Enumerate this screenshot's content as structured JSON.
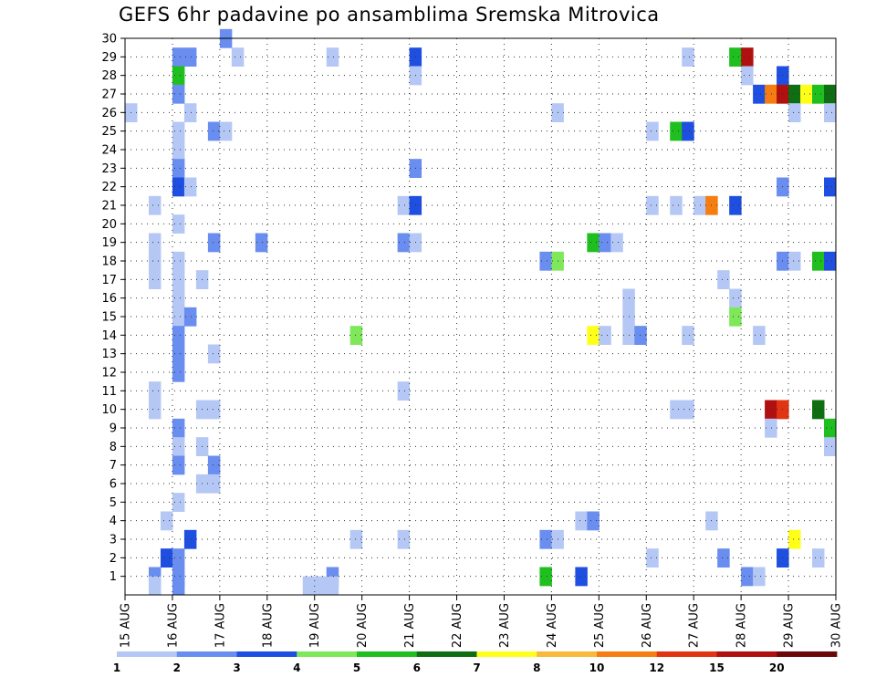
{
  "chart_data": {
    "type": "heatmap",
    "title": "GEFS 6hr padavine po ansamblima Sremska Mitrovica",
    "x_ticks": [
      "15 AUG",
      "16 AUG",
      "17 AUG",
      "18 AUG",
      "19 AUG",
      "20 AUG",
      "21 AUG",
      "22 AUG",
      "23 AUG",
      "24 AUG",
      "25 AUG",
      "26 AUG",
      "27 AUG",
      "28 AUG",
      "29 AUG",
      "30 AUG"
    ],
    "y_ticks": [
      1,
      2,
      3,
      4,
      5,
      6,
      7,
      8,
      9,
      10,
      11,
      12,
      13,
      14,
      15,
      16,
      17,
      18,
      19,
      20,
      21,
      22,
      23,
      24,
      25,
      26,
      27,
      28,
      29,
      30
    ],
    "x_range": [
      "15 AUG",
      "30 AUG"
    ],
    "y_range": [
      0,
      30
    ],
    "grid": true,
    "legend": {
      "position": "bottom",
      "labels": [
        "1",
        "2",
        "3",
        "4",
        "5",
        "6",
        "7",
        "8",
        "10",
        "12",
        "15",
        "20"
      ],
      "colors": [
        "#b5c8f5",
        "#6a8ef0",
        "#1f4fe0",
        "#7ee85a",
        "#1fbf1f",
        "#0f6e12",
        "#ffff1a",
        "#f8b93c",
        "#f57d12",
        "#e03412",
        "#b01010",
        "#6b0808"
      ]
    },
    "cells": [
      {
        "m": 30,
        "d": 17.0,
        "c": 2
      },
      {
        "m": 29,
        "d": 16.0,
        "c": 2
      },
      {
        "m": 29,
        "d": 16.25,
        "c": 2
      },
      {
        "m": 29,
        "d": 17.25,
        "c": 1
      },
      {
        "m": 29,
        "d": 19.25,
        "c": 1
      },
      {
        "m": 29,
        "d": 21.0,
        "c": 3
      },
      {
        "m": 29,
        "d": 26.75,
        "c": 1
      },
      {
        "m": 29,
        "d": 27.75,
        "c": 5
      },
      {
        "m": 29,
        "d": 28.0,
        "c": 11
      },
      {
        "m": 28,
        "d": 16.0,
        "c": 5
      },
      {
        "m": 28,
        "d": 21.0,
        "c": 1
      },
      {
        "m": 28,
        "d": 28.0,
        "c": 1
      },
      {
        "m": 28,
        "d": 28.75,
        "c": 3
      },
      {
        "m": 27,
        "d": 16.0,
        "c": 2
      },
      {
        "m": 27,
        "d": 28.25,
        "c": 3
      },
      {
        "m": 27,
        "d": 28.5,
        "c": 9
      },
      {
        "m": 27,
        "d": 28.75,
        "c": 11
      },
      {
        "m": 27,
        "d": 29.0,
        "c": 6
      },
      {
        "m": 27,
        "d": 29.25,
        "c": 7
      },
      {
        "m": 27,
        "d": 29.5,
        "c": 5
      },
      {
        "m": 27,
        "d": 29.75,
        "c": 6
      },
      {
        "m": 26,
        "d": 15.0,
        "c": 1
      },
      {
        "m": 26,
        "d": 16.25,
        "c": 1
      },
      {
        "m": 26,
        "d": 24.0,
        "c": 1
      },
      {
        "m": 26,
        "d": 29.0,
        "c": 1
      },
      {
        "m": 26,
        "d": 29.75,
        "c": 1
      },
      {
        "m": 25,
        "d": 16.0,
        "c": 1
      },
      {
        "m": 25,
        "d": 16.75,
        "c": 2
      },
      {
        "m": 25,
        "d": 17.0,
        "c": 1
      },
      {
        "m": 25,
        "d": 26.0,
        "c": 1
      },
      {
        "m": 25,
        "d": 26.5,
        "c": 5
      },
      {
        "m": 25,
        "d": 26.75,
        "c": 3
      },
      {
        "m": 24,
        "d": 16.0,
        "c": 1
      },
      {
        "m": 23,
        "d": 16.0,
        "c": 2
      },
      {
        "m": 23,
        "d": 21.0,
        "c": 2
      },
      {
        "m": 22,
        "d": 16.0,
        "c": 3
      },
      {
        "m": 22,
        "d": 16.25,
        "c": 1
      },
      {
        "m": 22,
        "d": 28.75,
        "c": 2
      },
      {
        "m": 22,
        "d": 29.75,
        "c": 3
      },
      {
        "m": 21,
        "d": 15.5,
        "c": 1
      },
      {
        "m": 21,
        "d": 20.75,
        "c": 1
      },
      {
        "m": 21,
        "d": 21.0,
        "c": 3
      },
      {
        "m": 21,
        "d": 26.0,
        "c": 1
      },
      {
        "m": 21,
        "d": 26.5,
        "c": 1
      },
      {
        "m": 21,
        "d": 27.0,
        "c": 1
      },
      {
        "m": 21,
        "d": 27.25,
        "c": 9
      },
      {
        "m": 21,
        "d": 27.75,
        "c": 3
      },
      {
        "m": 20,
        "d": 16.0,
        "c": 1
      },
      {
        "m": 19,
        "d": 15.5,
        "c": 1
      },
      {
        "m": 19,
        "d": 16.75,
        "c": 2
      },
      {
        "m": 19,
        "d": 17.75,
        "c": 2
      },
      {
        "m": 19,
        "d": 20.75,
        "c": 2
      },
      {
        "m": 19,
        "d": 21.0,
        "c": 1
      },
      {
        "m": 19,
        "d": 24.75,
        "c": 5
      },
      {
        "m": 19,
        "d": 25.0,
        "c": 2
      },
      {
        "m": 19,
        "d": 25.25,
        "c": 1
      },
      {
        "m": 18,
        "d": 15.5,
        "c": 1
      },
      {
        "m": 18,
        "d": 16.0,
        "c": 1
      },
      {
        "m": 18,
        "d": 23.75,
        "c": 2
      },
      {
        "m": 18,
        "d": 24.0,
        "c": 4
      },
      {
        "m": 18,
        "d": 28.75,
        "c": 2
      },
      {
        "m": 18,
        "d": 29.0,
        "c": 1
      },
      {
        "m": 18,
        "d": 29.5,
        "c": 5
      },
      {
        "m": 18,
        "d": 29.75,
        "c": 3
      },
      {
        "m": 17,
        "d": 15.5,
        "c": 1
      },
      {
        "m": 17,
        "d": 16.0,
        "c": 1
      },
      {
        "m": 17,
        "d": 16.5,
        "c": 1
      },
      {
        "m": 17,
        "d": 27.5,
        "c": 1
      },
      {
        "m": 16,
        "d": 16.0,
        "c": 1
      },
      {
        "m": 16,
        "d": 25.5,
        "c": 1
      },
      {
        "m": 16,
        "d": 27.75,
        "c": 1
      },
      {
        "m": 15,
        "d": 16.0,
        "c": 1
      },
      {
        "m": 15,
        "d": 16.25,
        "c": 2
      },
      {
        "m": 15,
        "d": 25.5,
        "c": 1
      },
      {
        "m": 15,
        "d": 27.75,
        "c": 4
      },
      {
        "m": 14,
        "d": 16.0,
        "c": 2
      },
      {
        "m": 14,
        "d": 19.75,
        "c": 4
      },
      {
        "m": 14,
        "d": 24.75,
        "c": 7
      },
      {
        "m": 14,
        "d": 25.0,
        "c": 1
      },
      {
        "m": 14,
        "d": 25.5,
        "c": 1
      },
      {
        "m": 14,
        "d": 25.75,
        "c": 2
      },
      {
        "m": 14,
        "d": 26.75,
        "c": 1
      },
      {
        "m": 14,
        "d": 28.25,
        "c": 1
      },
      {
        "m": 13,
        "d": 16.0,
        "c": 2
      },
      {
        "m": 13,
        "d": 16.75,
        "c": 1
      },
      {
        "m": 12,
        "d": 16.0,
        "c": 2
      },
      {
        "m": 11,
        "d": 15.5,
        "c": 1
      },
      {
        "m": 11,
        "d": 20.75,
        "c": 1
      },
      {
        "m": 10,
        "d": 15.5,
        "c": 1
      },
      {
        "m": 10,
        "d": 16.5,
        "c": 1
      },
      {
        "m": 10,
        "d": 16.75,
        "c": 1
      },
      {
        "m": 10,
        "d": 26.5,
        "c": 1
      },
      {
        "m": 10,
        "d": 26.75,
        "c": 1
      },
      {
        "m": 10,
        "d": 28.5,
        "c": 11
      },
      {
        "m": 10,
        "d": 28.75,
        "c": 10
      },
      {
        "m": 10,
        "d": 29.5,
        "c": 6
      },
      {
        "m": 9,
        "d": 16.0,
        "c": 2
      },
      {
        "m": 9,
        "d": 28.5,
        "c": 1
      },
      {
        "m": 9,
        "d": 29.75,
        "c": 5
      },
      {
        "m": 8,
        "d": 16.0,
        "c": 1
      },
      {
        "m": 8,
        "d": 16.5,
        "c": 1
      },
      {
        "m": 8,
        "d": 29.75,
        "c": 1
      },
      {
        "m": 7,
        "d": 16.0,
        "c": 2
      },
      {
        "m": 7,
        "d": 16.75,
        "c": 2
      },
      {
        "m": 6,
        "d": 16.5,
        "c": 1
      },
      {
        "m": 6,
        "d": 16.75,
        "c": 1
      },
      {
        "m": 5,
        "d": 16.0,
        "c": 1
      },
      {
        "m": 4,
        "d": 15.75,
        "c": 1
      },
      {
        "m": 4,
        "d": 24.5,
        "c": 1
      },
      {
        "m": 4,
        "d": 24.75,
        "c": 2
      },
      {
        "m": 4,
        "d": 27.25,
        "c": 1
      },
      {
        "m": 3,
        "d": 16.25,
        "c": 3
      },
      {
        "m": 3,
        "d": 19.75,
        "c": 1
      },
      {
        "m": 3,
        "d": 20.75,
        "c": 1
      },
      {
        "m": 3,
        "d": 23.75,
        "c": 2
      },
      {
        "m": 3,
        "d": 24.0,
        "c": 1
      },
      {
        "m": 3,
        "d": 29.0,
        "c": 7
      },
      {
        "m": 2,
        "d": 15.75,
        "c": 3
      },
      {
        "m": 2,
        "d": 16.0,
        "c": 2
      },
      {
        "m": 2,
        "d": 26.0,
        "c": 1
      },
      {
        "m": 2,
        "d": 27.5,
        "c": 2
      },
      {
        "m": 2,
        "d": 28.75,
        "c": 3
      },
      {
        "m": 2,
        "d": 29.5,
        "c": 1
      },
      {
        "m": 1,
        "d": 15.5,
        "c": 2
      },
      {
        "m": 1,
        "d": 16.0,
        "c": 2
      },
      {
        "m": 1,
        "d": 19.25,
        "c": 2
      },
      {
        "m": 1,
        "d": 23.75,
        "c": 5
      },
      {
        "m": 1,
        "d": 24.5,
        "c": 3
      },
      {
        "m": 1,
        "d": 28.0,
        "c": 2
      },
      {
        "m": 1,
        "d": 28.25,
        "c": 1
      },
      {
        "m": 0.5,
        "d": 15.5,
        "c": 1
      },
      {
        "m": 0.5,
        "d": 16.0,
        "c": 2
      },
      {
        "m": 0.5,
        "d": 18.75,
        "c": 1
      },
      {
        "m": 0.5,
        "d": 19.0,
        "c": 1
      },
      {
        "m": 0.5,
        "d": 19.25,
        "c": 1
      }
    ]
  }
}
